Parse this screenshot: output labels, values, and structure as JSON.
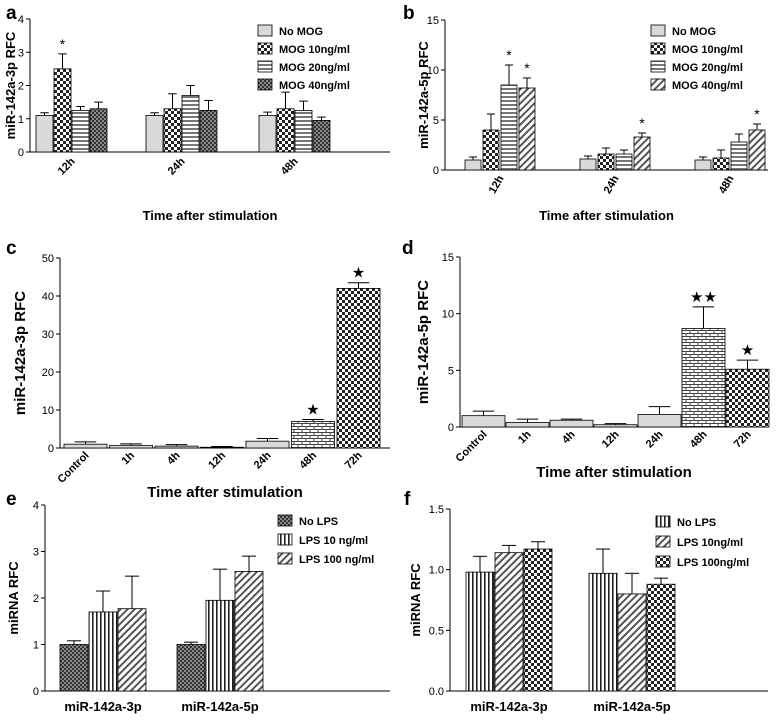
{
  "colors": {
    "bar_stroke": "#000000",
    "axis": "#000000",
    "background": "#ffffff"
  },
  "chart_data": [
    {
      "panel": "a",
      "type": "bar",
      "ylabel": "miR-142a-3p RFC",
      "xlabel": "Time after stimulation",
      "categories": [
        "12h",
        "24h",
        "48h"
      ],
      "tick_rotation": -45,
      "ylim": [
        0,
        4
      ],
      "yticks": [
        "0",
        "1",
        "2",
        "3",
        "4"
      ],
      "ytick_values": [
        0,
        1,
        2,
        3,
        4
      ],
      "legend_position": "top-right",
      "series": [
        {
          "name": "No MOG",
          "pattern": "solid-light",
          "values": [
            1.1,
            1.1,
            1.1
          ],
          "errors": [
            0.08,
            0.08,
            0.1
          ]
        },
        {
          "name": "MOG 10ng/ml",
          "pattern": "check",
          "values": [
            2.5,
            1.3,
            1.3
          ],
          "errors": [
            0.45,
            0.45,
            0.5
          ]
        },
        {
          "name": "MOG 20ng/ml",
          "pattern": "hlines",
          "values": [
            1.25,
            1.7,
            1.25
          ],
          "errors": [
            0.12,
            0.3,
            0.28
          ]
        },
        {
          "name": "MOG 40ng/ml",
          "pattern": "check-dark",
          "values": [
            1.3,
            1.25,
            0.95
          ],
          "errors": [
            0.2,
            0.3,
            0.1
          ]
        }
      ],
      "annotations": [
        {
          "label": "*",
          "category": 0,
          "series": 1
        }
      ]
    },
    {
      "panel": "b",
      "type": "bar",
      "ylabel": "miR-142a-5p RFC",
      "xlabel": "Time after stimulation",
      "categories": [
        "12h",
        "24h",
        "48h"
      ],
      "tick_rotation": -60,
      "ylim": [
        0,
        15
      ],
      "yticks": [
        "0",
        "5",
        "10",
        "15"
      ],
      "ytick_values": [
        0,
        5,
        10,
        15
      ],
      "legend_position": "top-right",
      "series": [
        {
          "name": "No MOG",
          "pattern": "solid-light",
          "values": [
            1.0,
            1.1,
            1.0
          ],
          "errors": [
            0.3,
            0.3,
            0.3
          ]
        },
        {
          "name": "MOG 10ng/ml",
          "pattern": "check",
          "values": [
            4.0,
            1.6,
            1.2
          ],
          "errors": [
            1.6,
            0.6,
            0.8
          ]
        },
        {
          "name": "MOG 20ng/ml",
          "pattern": "hlines",
          "values": [
            8.5,
            1.6,
            2.8
          ],
          "errors": [
            2.0,
            0.4,
            0.8
          ]
        },
        {
          "name": "MOG 40ng/ml",
          "pattern": "diag",
          "values": [
            8.2,
            3.3,
            4.0
          ],
          "errors": [
            1.0,
            0.4,
            0.6
          ]
        }
      ],
      "annotations": [
        {
          "label": "*",
          "category": 0,
          "series": 2
        },
        {
          "label": "*",
          "category": 0,
          "series": 3
        },
        {
          "label": "*",
          "category": 1,
          "series": 3
        },
        {
          "label": "*",
          "category": 2,
          "series": 3
        }
      ]
    },
    {
      "panel": "c",
      "type": "bar",
      "ylabel": "miR-142a-3p RFC",
      "xlabel": "Time after stimulation",
      "categories": [
        "Control",
        "1h",
        "4h",
        "12h",
        "24h",
        "48h",
        "72h"
      ],
      "tick_rotation": -45,
      "ylim": [
        0,
        50
      ],
      "yticks": [
        "0",
        "10",
        "20",
        "30",
        "40",
        "50"
      ],
      "ytick_values": [
        0,
        10,
        20,
        30,
        40,
        50
      ],
      "legend_position": "none",
      "series": [
        {
          "name": "",
          "values": [
            1.0,
            0.7,
            0.5,
            0.2,
            1.8,
            7.0,
            42.0
          ],
          "errors": [
            0.6,
            0.4,
            0.4,
            0.2,
            0.7,
            0.5,
            1.5
          ],
          "patterns": [
            "solid-light",
            "solid-light",
            "solid-light",
            "solid-light",
            "solid-light",
            "brick",
            "check"
          ]
        }
      ],
      "annotations": [
        {
          "label": "★",
          "category": 5,
          "series": 0
        },
        {
          "label": "★",
          "category": 6,
          "series": 0
        }
      ]
    },
    {
      "panel": "d",
      "type": "bar",
      "ylabel": "miR-142a-5p RFC",
      "xlabel": "Time after stimulation",
      "categories": [
        "Control",
        "1h",
        "4h",
        "12h",
        "24h",
        "48h",
        "72h"
      ],
      "tick_rotation": -45,
      "ylim": [
        0,
        15
      ],
      "yticks": [
        "0",
        "5",
        "10",
        "15"
      ],
      "ytick_values": [
        0,
        5,
        10,
        15
      ],
      "legend_position": "none",
      "series": [
        {
          "name": "",
          "values": [
            1.0,
            0.4,
            0.6,
            0.2,
            1.1,
            8.7,
            5.1
          ],
          "errors": [
            0.4,
            0.3,
            0.1,
            0.1,
            0.7,
            1.9,
            0.8
          ],
          "patterns": [
            "solid-light",
            "solid-light",
            "solid-light",
            "solid-light",
            "solid-light",
            "brick",
            "check"
          ]
        }
      ],
      "annotations": [
        {
          "label": "★★",
          "category": 5,
          "series": 0
        },
        {
          "label": "★",
          "category": 6,
          "series": 0
        }
      ]
    },
    {
      "panel": "e",
      "type": "bar",
      "ylabel": "miRNA RFC",
      "xlabel": "",
      "categories": [
        "miR-142a-3p",
        "miR-142a-5p"
      ],
      "tick_rotation": 0,
      "ylim": [
        0,
        4
      ],
      "yticks": [
        "0",
        "1",
        "2",
        "3",
        "4"
      ],
      "ytick_values": [
        0,
        1,
        2,
        3,
        4
      ],
      "legend_position": "top-right",
      "series": [
        {
          "name": "No LPS",
          "pattern": "check-dark",
          "values": [
            1.0,
            1.0
          ],
          "errors": [
            0.08,
            0.05
          ]
        },
        {
          "name": "LPS 10 ng/ml",
          "pattern": "vlines",
          "values": [
            1.7,
            1.95
          ],
          "errors": [
            0.45,
            0.67
          ]
        },
        {
          "name": "LPS 100 ng/ml",
          "pattern": "diag",
          "values": [
            1.77,
            2.57
          ],
          "errors": [
            0.7,
            0.33
          ]
        }
      ],
      "annotations": []
    },
    {
      "panel": "f",
      "type": "bar",
      "ylabel": "miRNA RFC",
      "xlabel": "",
      "categories": [
        "miR-142a-3p",
        "miR-142a-5p"
      ],
      "tick_rotation": 0,
      "ylim": [
        0,
        1.5
      ],
      "yticks": [
        "0.0",
        "0.5",
        "1.0",
        "1.5"
      ],
      "ytick_values": [
        0,
        0.5,
        1.0,
        1.5
      ],
      "legend_position": "top-right",
      "series": [
        {
          "name": "No LPS",
          "pattern": "vlines",
          "values": [
            0.98,
            0.97
          ],
          "errors": [
            0.13,
            0.2
          ]
        },
        {
          "name": "LPS 10ng/ml",
          "pattern": "diag",
          "values": [
            1.14,
            0.8
          ],
          "errors": [
            0.06,
            0.17
          ]
        },
        {
          "name": "LPS 100ng/ml",
          "pattern": "check",
          "values": [
            1.17,
            0.88
          ],
          "errors": [
            0.06,
            0.05
          ]
        }
      ],
      "annotations": []
    }
  ]
}
